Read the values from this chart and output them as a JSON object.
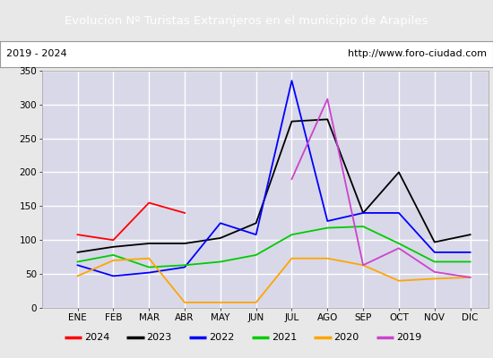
{
  "title": "Evolucion Nº Turistas Extranjeros en el municipio de Arapiles",
  "subtitle_left": "2019 - 2024",
  "subtitle_right": "http://www.foro-ciudad.com",
  "title_bg_color": "#4f86c6",
  "title_text_color": "#ffffff",
  "months": [
    "ENE",
    "FEB",
    "MAR",
    "ABR",
    "MAY",
    "JUN",
    "JUL",
    "AGO",
    "SEP",
    "OCT",
    "NOV",
    "DIC"
  ],
  "ylim": [
    0,
    350
  ],
  "yticks": [
    0,
    50,
    100,
    150,
    200,
    250,
    300,
    350
  ],
  "series": {
    "2024": {
      "color": "#ff0000",
      "values": [
        108,
        100,
        155,
        140,
        null,
        null,
        null,
        null,
        null,
        null,
        null,
        null
      ]
    },
    "2023": {
      "color": "#000000",
      "values": [
        82,
        90,
        95,
        95,
        103,
        125,
        275,
        278,
        140,
        200,
        97,
        108
      ]
    },
    "2022": {
      "color": "#0000ff",
      "values": [
        63,
        47,
        52,
        60,
        125,
        108,
        335,
        128,
        140,
        140,
        82,
        82
      ]
    },
    "2021": {
      "color": "#00cc00",
      "values": [
        68,
        78,
        60,
        63,
        68,
        78,
        108,
        118,
        120,
        95,
        68,
        68
      ]
    },
    "2020": {
      "color": "#ffa500",
      "values": [
        47,
        70,
        73,
        8,
        8,
        8,
        73,
        73,
        63,
        40,
        43,
        45
      ]
    },
    "2019": {
      "color": "#cc44cc",
      "values": [
        null,
        null,
        null,
        null,
        null,
        null,
        190,
        308,
        63,
        88,
        53,
        45
      ]
    }
  },
  "legend_order": [
    "2024",
    "2023",
    "2022",
    "2021",
    "2020",
    "2019"
  ],
  "outer_bg": "#e8e8e8",
  "plot_bg_color": "#d8d8e8",
  "grid_color": "#ffffff",
  "subtitle_bg": "#ffffff",
  "subtitle_border": "#999999"
}
